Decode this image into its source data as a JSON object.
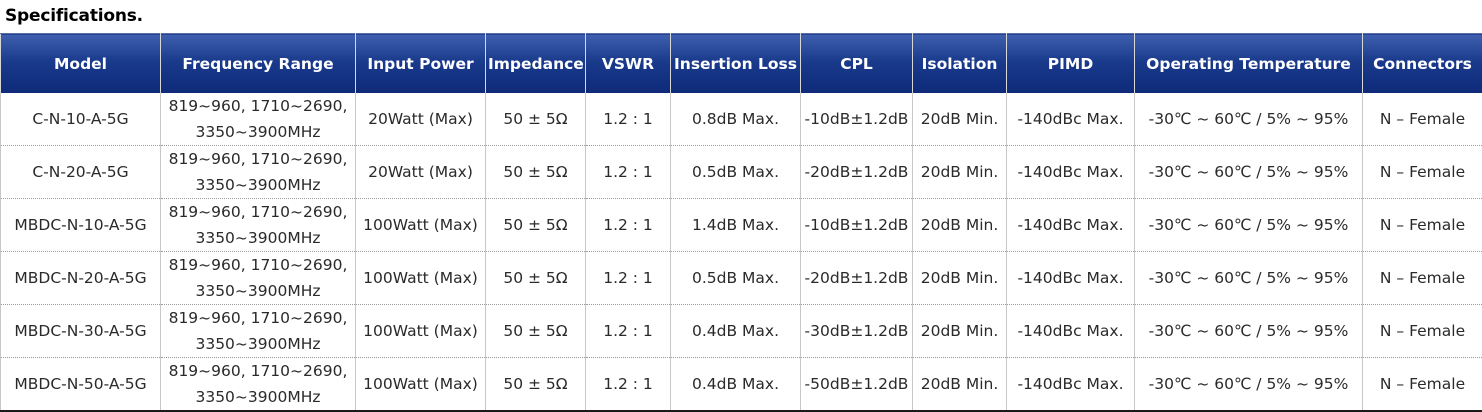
{
  "page": {
    "title": "Specifications."
  },
  "table": {
    "headers": [
      "Model",
      "Frequency Range",
      "Input Power",
      "Impedance",
      "VSWR",
      "Insertion Loss",
      "CPL",
      "Isolation",
      "PIMD",
      "Operating Temperature",
      "Connectors"
    ],
    "rows": [
      {
        "model": "C-N-10-A-5G",
        "freq_line1": "819~960, 1710~2690,",
        "freq_line2": "3350~3900MHz",
        "input_power": "20Watt (Max)",
        "impedance": "50 ± 5Ω",
        "vswr": "1.2 : 1",
        "insertion_loss": "0.8dB Max.",
        "cpl": "-10dB±1.2dB",
        "isolation": "20dB Min.",
        "pimd": "-140dBc Max.",
        "temperature": "-30℃ ~ 60℃ / 5% ~ 95%",
        "connectors": "N – Female"
      },
      {
        "model": "C-N-20-A-5G",
        "freq_line1": "819~960, 1710~2690,",
        "freq_line2": "3350~3900MHz",
        "input_power": "20Watt (Max)",
        "impedance": "50 ± 5Ω",
        "vswr": "1.2 : 1",
        "insertion_loss": "0.5dB Max.",
        "cpl": "-20dB±1.2dB",
        "isolation": "20dB Min.",
        "pimd": "-140dBc Max.",
        "temperature": "-30℃ ~ 60℃ / 5% ~ 95%",
        "connectors": "N – Female"
      },
      {
        "model": "MBDC-N-10-A-5G",
        "freq_line1": "819~960, 1710~2690,",
        "freq_line2": "3350~3900MHz",
        "input_power": "100Watt (Max)",
        "impedance": "50 ± 5Ω",
        "vswr": "1.2 : 1",
        "insertion_loss": "1.4dB Max.",
        "cpl": "-10dB±1.2dB",
        "isolation": "20dB Min.",
        "pimd": "-140dBc Max.",
        "temperature": "-30℃ ~ 60℃ / 5% ~ 95%",
        "connectors": "N – Female"
      },
      {
        "model": "MBDC-N-20-A-5G",
        "freq_line1": "819~960, 1710~2690,",
        "freq_line2": "3350~3900MHz",
        "input_power": "100Watt (Max)",
        "impedance": "50 ± 5Ω",
        "vswr": "1.2 : 1",
        "insertion_loss": "0.5dB Max.",
        "cpl": "-20dB±1.2dB",
        "isolation": "20dB Min.",
        "pimd": "-140dBc Max.",
        "temperature": "-30℃ ~ 60℃ / 5% ~ 95%",
        "connectors": "N – Female"
      },
      {
        "model": "MBDC-N-30-A-5G",
        "freq_line1": "819~960, 1710~2690,",
        "freq_line2": "3350~3900MHz",
        "input_power": "100Watt (Max)",
        "impedance": "50 ± 5Ω",
        "vswr": "1.2 : 1",
        "insertion_loss": "0.4dB Max.",
        "cpl": "-30dB±1.2dB",
        "isolation": "20dB Min.",
        "pimd": "-140dBc Max.",
        "temperature": "-30℃ ~ 60℃ / 5% ~ 95%",
        "connectors": "N – Female"
      },
      {
        "model": "MBDC-N-50-A-5G",
        "freq_line1": "819~960, 1710~2690,",
        "freq_line2": "3350~3900MHz",
        "input_power": "100Watt (Max)",
        "impedance": "50 ± 5Ω",
        "vswr": "1.2 : 1",
        "insertion_loss": "0.4dB Max.",
        "cpl": "-50dB±1.2dB",
        "isolation": "20dB Min.",
        "pimd": "-140dBc Max.",
        "temperature": "-30℃ ~ 60℃ / 5% ~ 95%",
        "connectors": "N – Female"
      }
    ]
  },
  "colors": {
    "header_bg": "#1a3a8c",
    "header_text": "#ffffff",
    "body_text": "#2a2a2a"
  }
}
